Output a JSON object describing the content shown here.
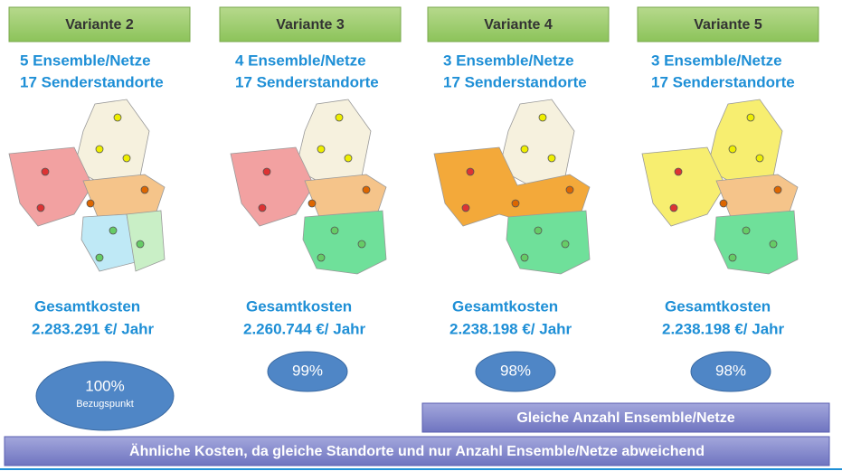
{
  "variants": [
    {
      "title": "Variante 2",
      "ensembles": "5 Ensemble/Netze",
      "sites": "17 Senderstandorte",
      "cost_label": "Gesamtkosten",
      "cost": "2.283.291 €/ Jahr",
      "percent": "100%",
      "note": "Bezugspunkt"
    },
    {
      "title": "Variante 3",
      "ensembles": "4 Ensemble/Netze",
      "sites": "17 Senderstandorte",
      "cost_label": "Gesamtkosten",
      "cost": "2.260.744 €/ Jahr",
      "percent": "99%"
    },
    {
      "title": "Variante 4",
      "ensembles": "3 Ensemble/Netze",
      "sites": "17 Senderstandorte",
      "cost_label": "Gesamtkosten",
      "cost": "2.238.198 €/ Jahr",
      "percent": "98%"
    },
    {
      "title": "Variante 5",
      "ensembles": "3 Ensemble/Netze",
      "sites": "17 Senderstandorte",
      "cost_label": "Gesamtkosten",
      "cost": "2.238.198 €/ Jahr",
      "percent": "98%"
    }
  ],
  "banner_small": "Gleiche Anzahl Ensemble/Netze",
  "banner_wide": "Ähnliche Kosten, da gleiche Standorte und nur Anzahl Ensemble/Netze abweichend"
}
